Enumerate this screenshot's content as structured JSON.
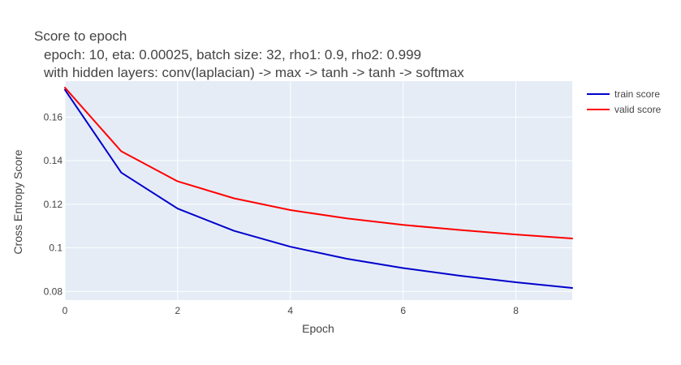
{
  "chart_data": {
    "type": "line",
    "title_lines": [
      "Score to epoch",
      "epoch: 10, eta: 0.00025, batch size: 32, rho1: 0.9, rho2: 0.999",
      "with hidden layers: conv(laplacian) -> max -> tanh -> tanh -> softmax"
    ],
    "xlabel": "Epoch",
    "ylabel": "Cross Entropy Score",
    "xlim": [
      0,
      9
    ],
    "ylim": [
      0.076,
      0.1765
    ],
    "x_ticks": [
      0,
      2,
      4,
      6,
      8
    ],
    "x_tick_labels": [
      "0",
      "2",
      "4",
      "6",
      "8"
    ],
    "y_ticks": [
      0.08,
      0.1,
      0.12,
      0.14,
      0.16
    ],
    "y_tick_labels": [
      "0.08",
      "0.1",
      "0.12",
      "0.14",
      "0.16"
    ],
    "grid": true,
    "legend_position": "top-right",
    "plot_bg": "#e5ecf6",
    "grid_color": "#ffffff",
    "x": [
      0,
      1,
      2,
      3,
      4,
      5,
      6,
      7,
      8,
      9
    ],
    "series": [
      {
        "name": "train score",
        "color": "#0000cc",
        "values": [
          0.1725,
          0.1345,
          0.118,
          0.1078,
          0.1005,
          0.095,
          0.0907,
          0.0872,
          0.0842,
          0.0816
        ]
      },
      {
        "name": "valid score",
        "color": "#ff0000",
        "values": [
          0.1735,
          0.1443,
          0.1305,
          0.1227,
          0.1173,
          0.1135,
          0.1105,
          0.1082,
          0.1061,
          0.1043
        ]
      }
    ]
  }
}
